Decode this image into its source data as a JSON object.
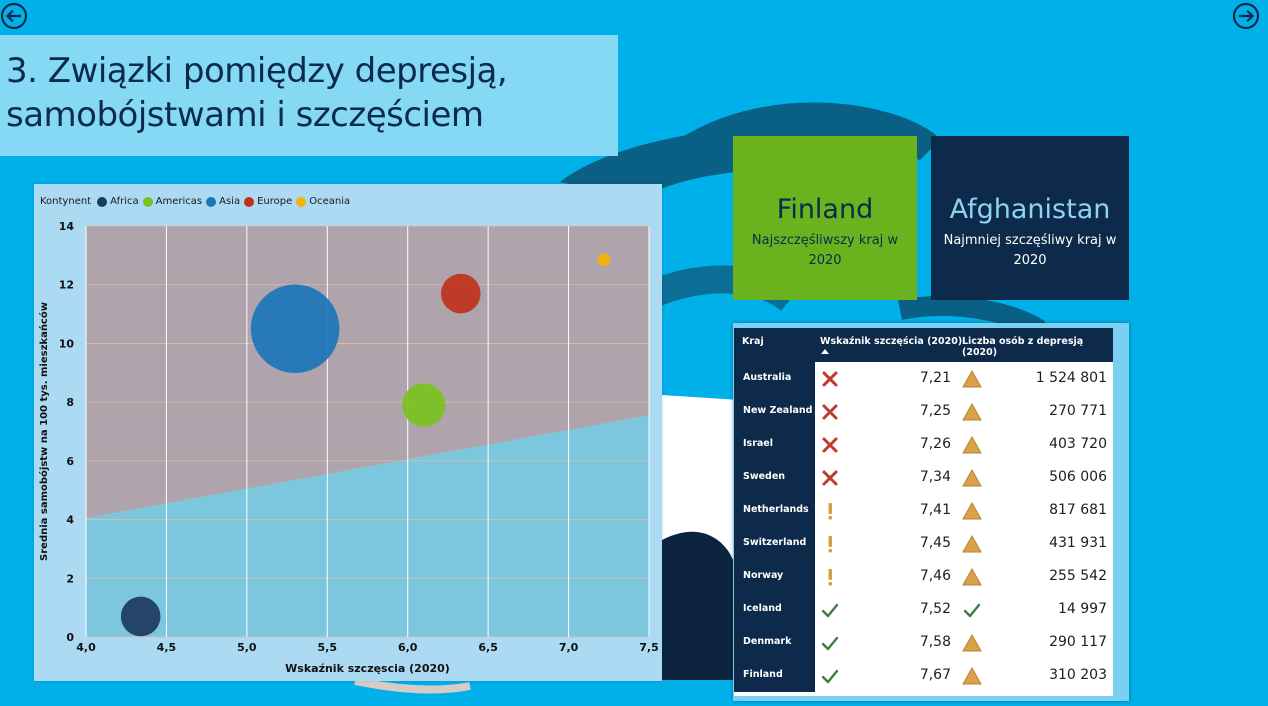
{
  "nav": {
    "back_icon": "arrow-left-circle-icon",
    "next_icon": "arrow-right-circle-icon"
  },
  "title": {
    "line1": "3. Związki pomiędzy depresją,",
    "line2": "samobójstwami i szczęściem"
  },
  "cards": {
    "happiest": {
      "country": "Finland",
      "caption": "Najszczęśliwszy kraj w 2020",
      "color": "#6ab21e"
    },
    "least_happy": {
      "country": "Afghanistan",
      "caption": "Najmniej szczęśliwy kraj w 2020",
      "color": "#0d2a4a"
    }
  },
  "chart_data": {
    "type": "scatter",
    "legend_title": "Kontynent",
    "xlabel": "Wskaźnik szczęscia (2020)",
    "ylabel": "Srednia samobójstw na 100 tys. mieszkańców",
    "xlim": [
      4.0,
      7.5
    ],
    "ylim": [
      0,
      14
    ],
    "x_ticks": [
      "4,0",
      "4,5",
      "5,0",
      "5,5",
      "6,0",
      "6,5",
      "7,0",
      "7,5"
    ],
    "y_ticks": [
      "0",
      "2",
      "4",
      "6",
      "8",
      "10",
      "12",
      "14"
    ],
    "grid": true,
    "legend_position": "top-left",
    "trend_band": {
      "x": [
        4.0,
        7.5
      ],
      "y": [
        4.05,
        7.55
      ]
    },
    "series": [
      {
        "name": "Africa",
        "color": "#1c3a5c",
        "x": 4.34,
        "y": 0.7,
        "size": 2
      },
      {
        "name": "Americas",
        "color": "#7ac21e",
        "x": 6.1,
        "y": 7.9,
        "size": 2.4
      },
      {
        "name": "Asia",
        "color": "#1b75b8",
        "x": 5.3,
        "y": 10.5,
        "size": 10
      },
      {
        "name": "Europe",
        "color": "#c0311b",
        "x": 6.33,
        "y": 11.7,
        "size": 2
      },
      {
        "name": "Oceania",
        "color": "#f5b400",
        "x": 7.22,
        "y": 12.85,
        "size": 0.2
      }
    ]
  },
  "table": {
    "headers": {
      "country": "Kraj",
      "score": "Wskaźnik szczęścia (2020)",
      "depression": "Liczba osób z depresją (2020)"
    },
    "rows": [
      {
        "country": "Australia",
        "score_icon": "cross-icon",
        "score": "7,21",
        "dep_icon": "warning-triangle-icon",
        "depression": "1 524 801"
      },
      {
        "country": "New Zealand",
        "score_icon": "cross-icon",
        "score": "7,25",
        "dep_icon": "warning-triangle-icon",
        "depression": "270 771"
      },
      {
        "country": "Israel",
        "score_icon": "cross-icon",
        "score": "7,26",
        "dep_icon": "warning-triangle-icon",
        "depression": "403 720"
      },
      {
        "country": "Sweden",
        "score_icon": "cross-icon",
        "score": "7,34",
        "dep_icon": "warning-triangle-icon",
        "depression": "506 006"
      },
      {
        "country": "Netherlands",
        "score_icon": "exclamation-icon",
        "score": "7,41",
        "dep_icon": "warning-triangle-icon",
        "depression": "817 681"
      },
      {
        "country": "Switzerland",
        "score_icon": "exclamation-icon",
        "score": "7,45",
        "dep_icon": "warning-triangle-icon",
        "depression": "431 931"
      },
      {
        "country": "Norway",
        "score_icon": "exclamation-icon",
        "score": "7,46",
        "dep_icon": "warning-triangle-icon",
        "depression": "255 542"
      },
      {
        "country": "Iceland",
        "score_icon": "check-icon",
        "score": "7,52",
        "dep_icon": "check-icon",
        "depression": "14 997"
      },
      {
        "country": "Denmark",
        "score_icon": "check-icon",
        "score": "7,58",
        "dep_icon": "warning-triangle-icon",
        "depression": "290 117"
      },
      {
        "country": "Finland",
        "score_icon": "check-icon",
        "score": "7,67",
        "dep_icon": "warning-triangle-icon",
        "depression": "310 203"
      }
    ]
  }
}
